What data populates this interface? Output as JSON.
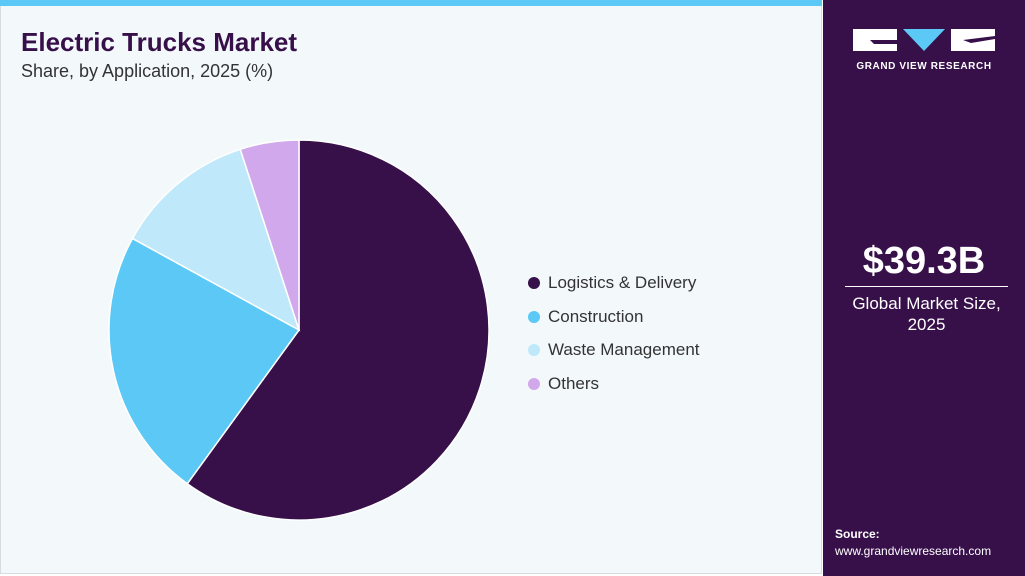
{
  "chart_data": {
    "type": "pie",
    "title": "Electric Trucks Market",
    "subtitle": "Share, by Application, 2025 (%)",
    "categories": [
      "Logistics & Delivery",
      "Construction",
      "Waste Management",
      "Others"
    ],
    "values": [
      60,
      23,
      12,
      5
    ],
    "colors": [
      "#37104a",
      "#5bc8f5",
      "#bfe9fa",
      "#d2a8ec"
    ]
  },
  "brand": "GRAND VIEW RESEARCH",
  "market_size": {
    "value": "$39.3B",
    "caption": "Global Market Size, 2025"
  },
  "source": {
    "label": "Source:",
    "url": "www.grandviewresearch.com"
  }
}
